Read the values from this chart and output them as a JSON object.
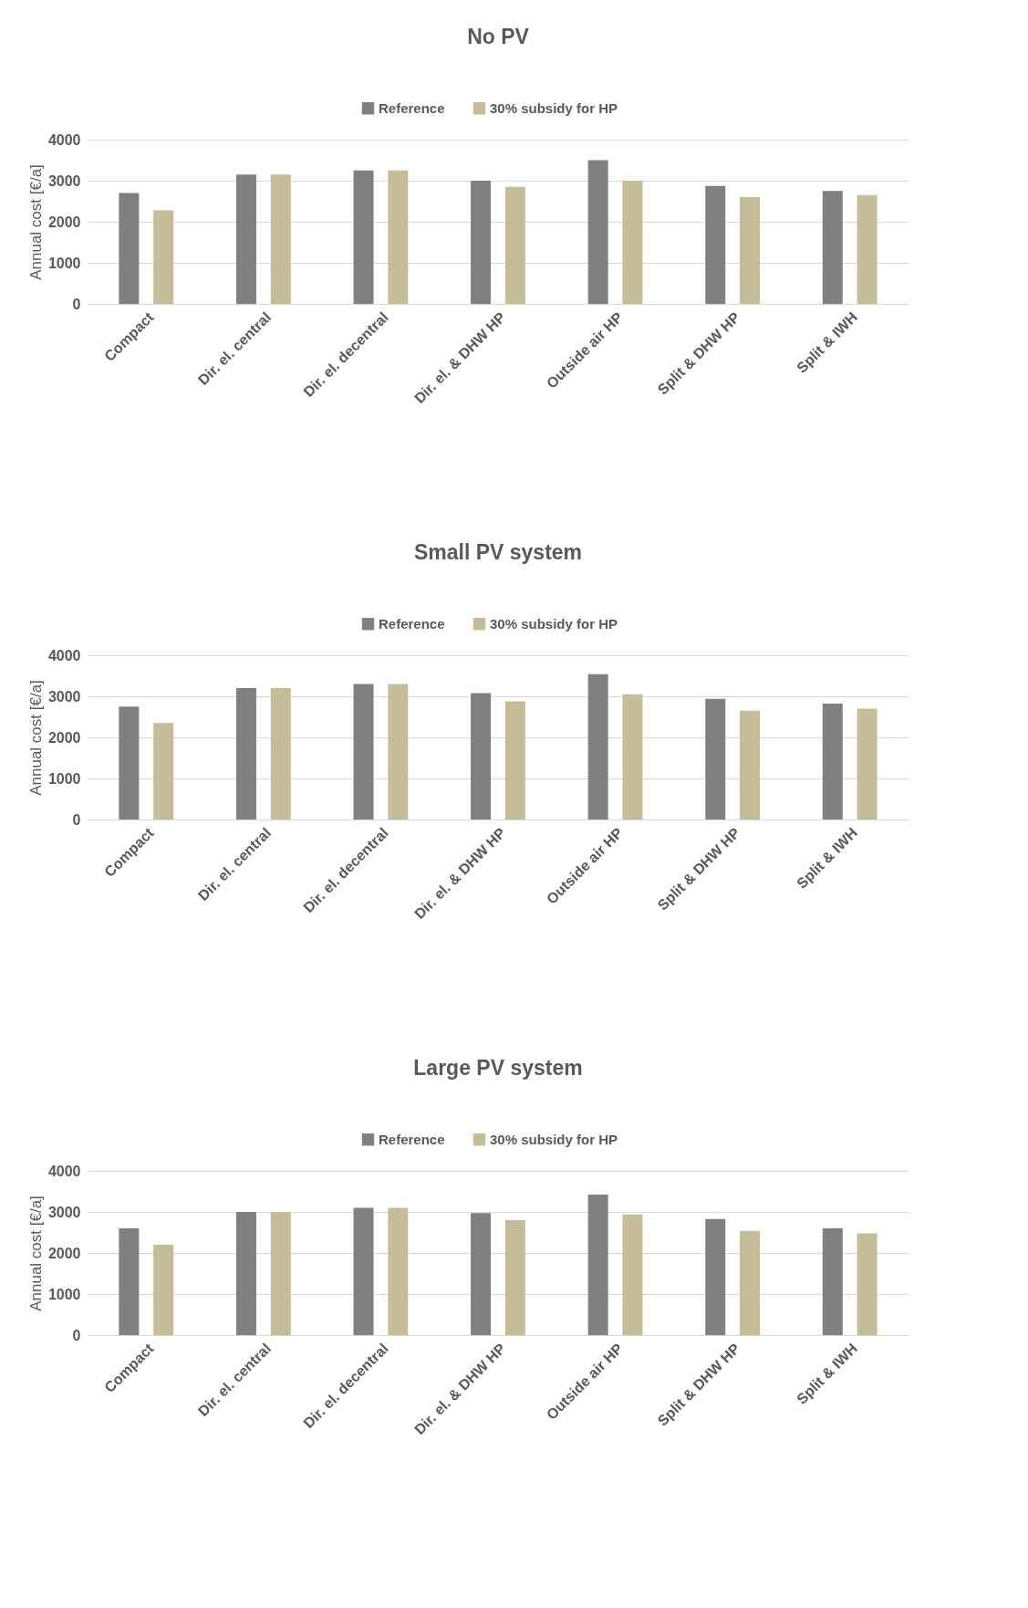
{
  "chart_data": [
    {
      "type": "bar",
      "title": "No PV",
      "ylabel": "Annual cost [€/a]",
      "categories": [
        "Compact",
        "Dir. el. central",
        "Dir. el. decentral",
        "Dir. el. & DHW HP",
        "Outside air HP",
        "Split & DHW HP",
        "Split & IWH"
      ],
      "ylim": [
        0,
        4000
      ],
      "yticks": [
        0,
        1000,
        2000,
        3000,
        4000
      ],
      "grid": "y",
      "legend": "top",
      "series": [
        {
          "name": "Reference",
          "color": "#808080",
          "values": [
            2700,
            3150,
            3250,
            3000,
            3500,
            2870,
            2750
          ]
        },
        {
          "name": "30% subsidy for HP",
          "color": "#c4bd97",
          "values": [
            2280,
            3150,
            3250,
            2850,
            3000,
            2600,
            2650
          ]
        }
      ]
    },
    {
      "type": "bar",
      "title": "Small PV system",
      "ylabel": "Annual cost [€/a]",
      "categories": [
        "Compact",
        "Dir. el. central",
        "Dir. el. decentral",
        "Dir. el. & DHW HP",
        "Outside air HP",
        "Split & DHW HP",
        "Split & IWH"
      ],
      "ylim": [
        0,
        4000
      ],
      "yticks": [
        0,
        1000,
        2000,
        3000,
        4000
      ],
      "grid": "y",
      "legend": "top",
      "series": [
        {
          "name": "Reference",
          "color": "#808080",
          "values": [
            2750,
            3200,
            3300,
            3080,
            3540,
            2940,
            2820
          ]
        },
        {
          "name": "30% subsidy for HP",
          "color": "#c4bd97",
          "values": [
            2350,
            3200,
            3300,
            2880,
            3050,
            2650,
            2700
          ]
        }
      ]
    },
    {
      "type": "bar",
      "title": "Large PV system",
      "ylabel": "Annual cost [€/a]",
      "categories": [
        "Compact",
        "Dir. el. central",
        "Dir. el. decentral",
        "Dir. el. & DHW HP",
        "Outside air HP",
        "Split & DHW HP",
        "Split & IWH"
      ],
      "ylim": [
        0,
        4000
      ],
      "yticks": [
        0,
        1000,
        2000,
        3000,
        4000
      ],
      "grid": "y",
      "legend": "top",
      "series": [
        {
          "name": "Reference",
          "color": "#808080",
          "values": [
            2600,
            3000,
            3100,
            2970,
            3420,
            2830,
            2600
          ]
        },
        {
          "name": "30% subsidy for HP",
          "color": "#c4bd97",
          "values": [
            2200,
            3000,
            3100,
            2800,
            2940,
            2540,
            2480
          ]
        }
      ]
    }
  ]
}
